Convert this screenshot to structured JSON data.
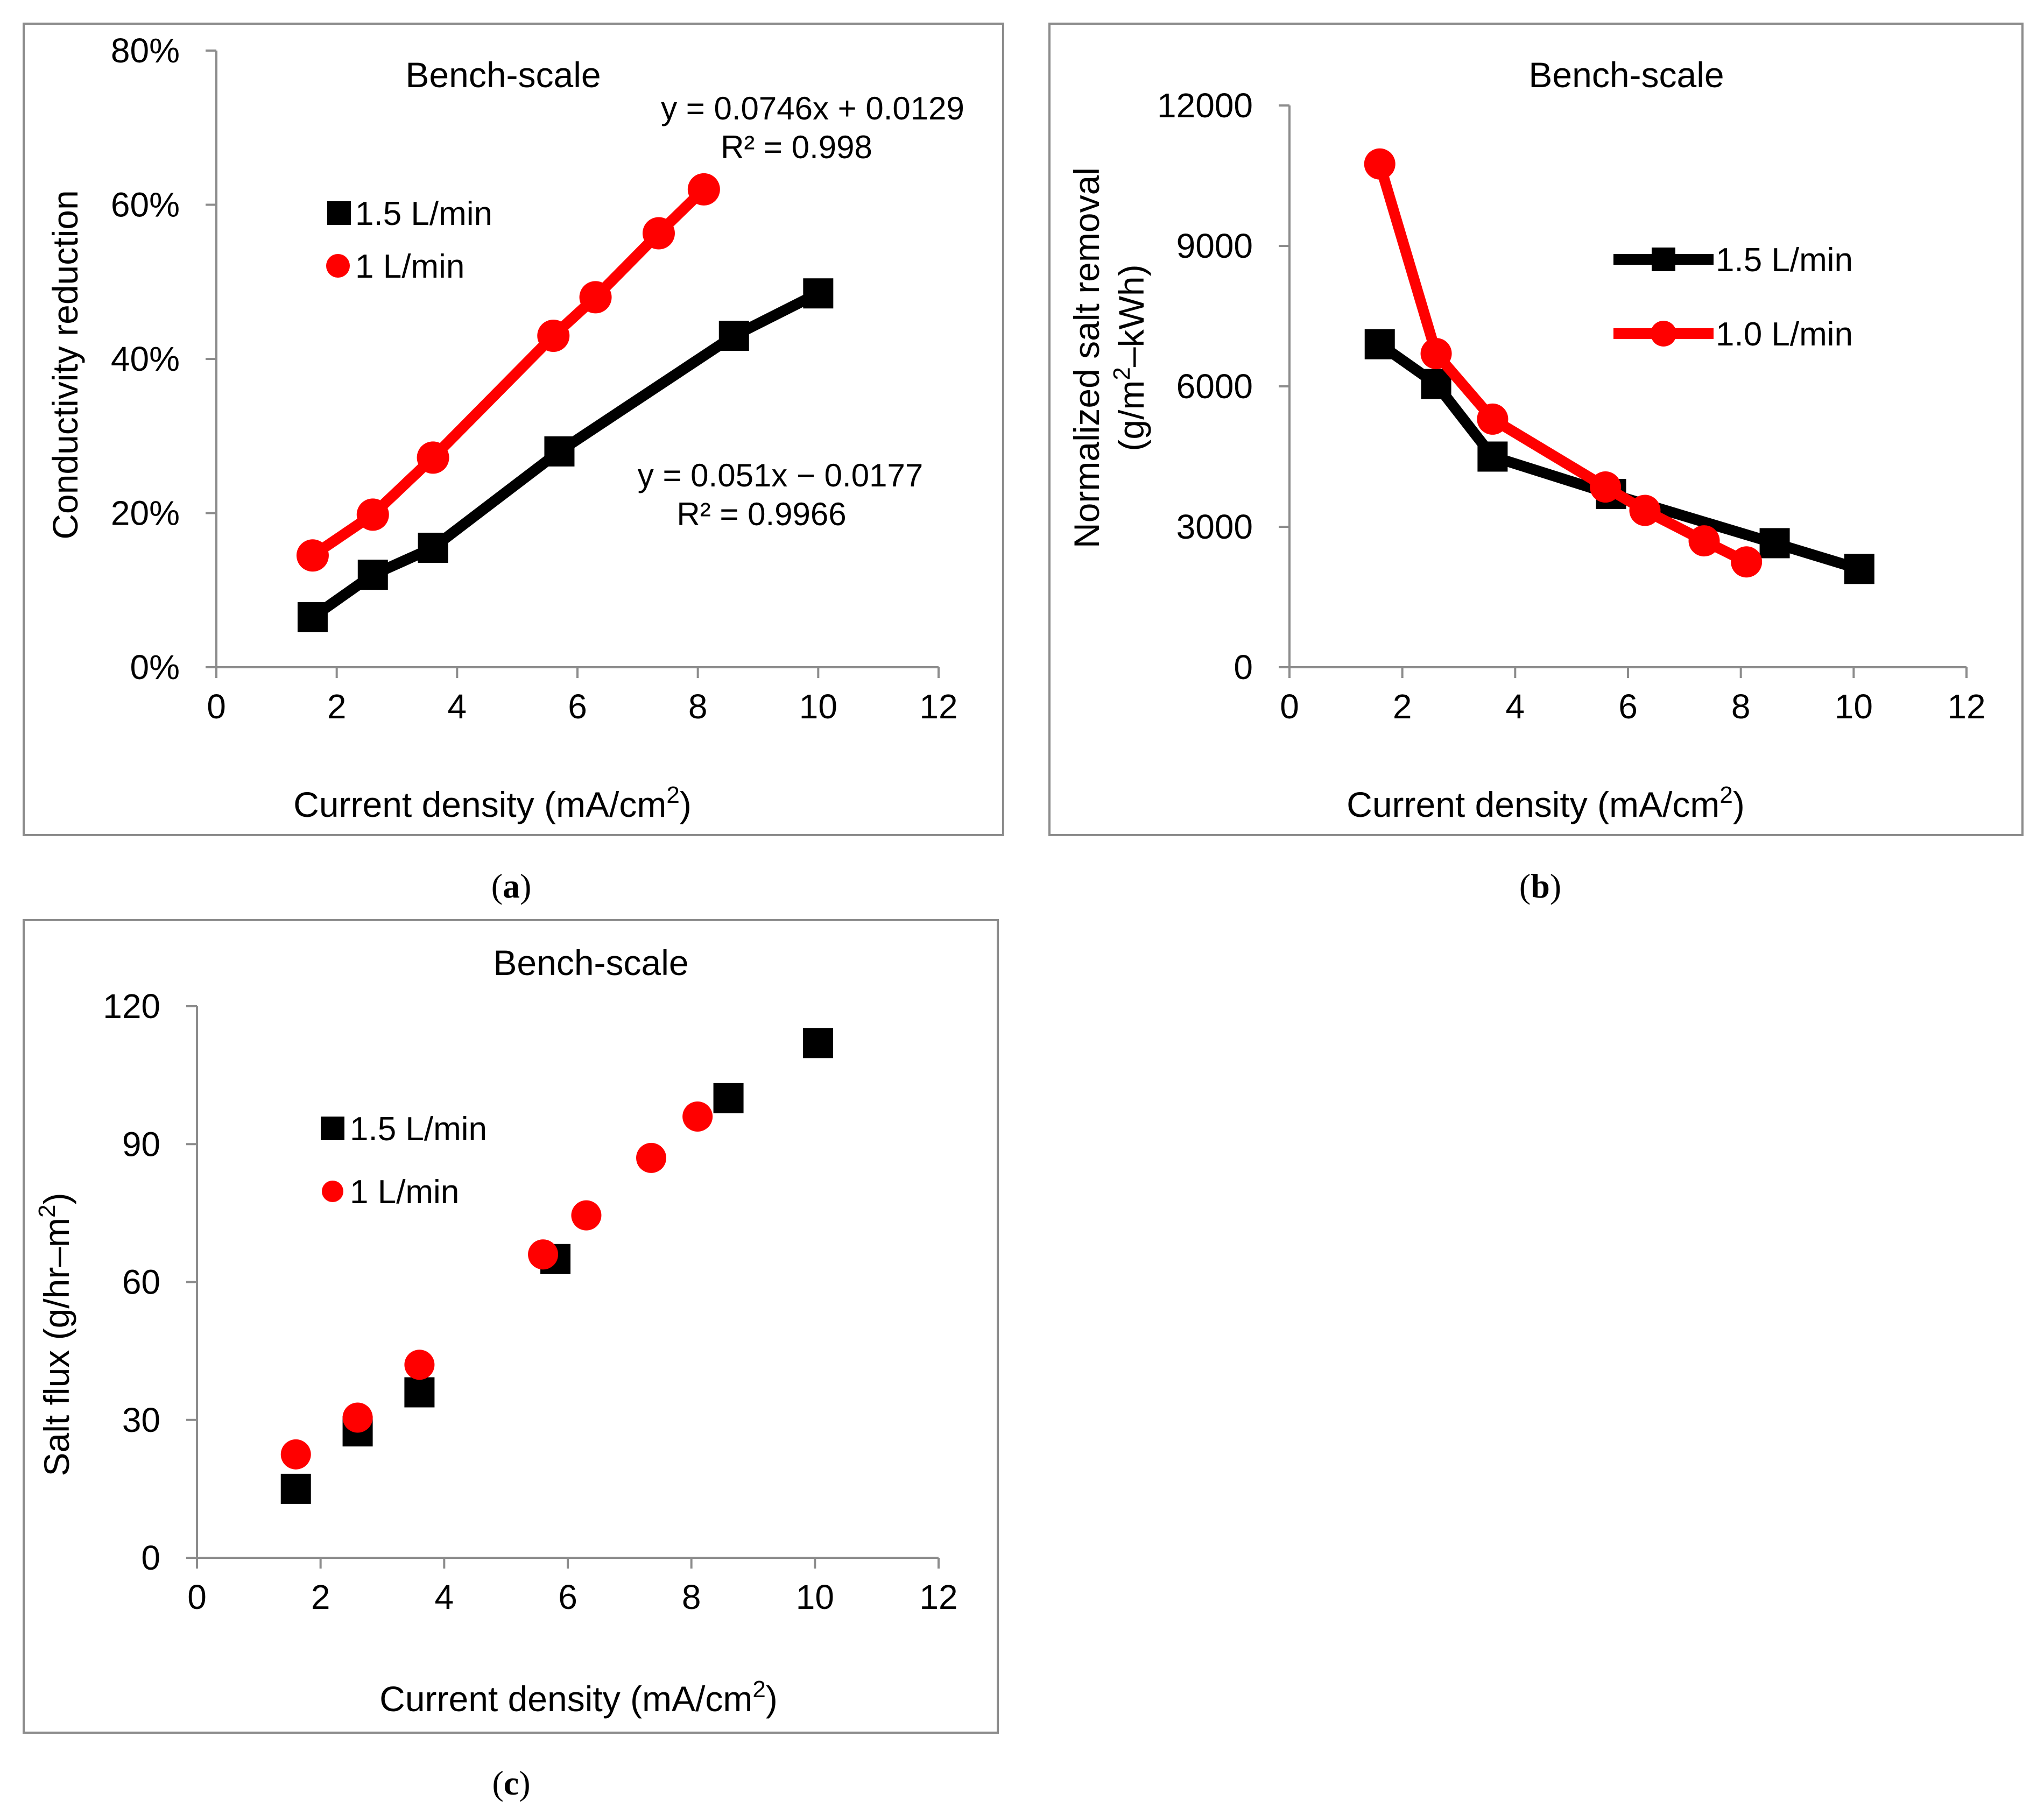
{
  "chart_data": [
    {
      "type": "line",
      "panel_label_pre": "(",
      "panel_label_letter": "a",
      "panel_label_post": ")",
      "title": "Bench-scale",
      "xlabel": "Current density (mA/cm",
      "xlabel_sup": "2",
      "xlabel_post": ")",
      "ylabel": "Conductivity reduction",
      "xlim": [
        0,
        12
      ],
      "ylim": [
        0,
        0.8
      ],
      "xticks": [
        0,
        2,
        4,
        6,
        8,
        10,
        12
      ],
      "yticks": [
        0,
        0.2,
        0.4,
        0.6,
        0.8
      ],
      "xtick_labels": [
        "0",
        "2",
        "4",
        "6",
        "8",
        "10",
        "12"
      ],
      "ytick_labels": [
        "0%",
        "20%",
        "40%",
        "60%",
        "80%"
      ],
      "legend": "upper-left",
      "series": [
        {
          "name": "1.5 L/min",
          "color": "#000000",
          "marker": "square",
          "x": [
            1.6,
            2.6,
            3.6,
            5.7,
            8.6,
            10.0
          ],
          "y": [
            0.065,
            0.12,
            0.155,
            0.28,
            0.43,
            0.485
          ]
        },
        {
          "name": "1 L/min",
          "color": "#ff0000",
          "marker": "circle",
          "x": [
            1.6,
            2.6,
            3.6,
            5.6,
            6.3,
            7.35,
            8.1
          ],
          "y": [
            0.145,
            0.198,
            0.272,
            0.43,
            0.48,
            0.563,
            0.62
          ]
        }
      ],
      "annotations": [
        {
          "eq": "y = 0.0746x + 0.0129",
          "r2": "R² = 0.998"
        },
        {
          "eq": "y = 0.051x − 0.0177",
          "r2": "R² = 0.9966"
        }
      ]
    },
    {
      "type": "line",
      "panel_label_pre": "(",
      "panel_label_letter": "b",
      "panel_label_post": ")",
      "title": "Bench-scale",
      "xlabel": "Current density (mA/cm",
      "xlabel_sup": "2",
      "xlabel_post": ")",
      "ylabel_line1": "Normalized salt removal",
      "ylabel_line2_pre": "(g/m",
      "ylabel_line2_sup": "2",
      "ylabel_line2_post": "–kWh)",
      "xlim": [
        0,
        12
      ],
      "ylim": [
        0,
        12000
      ],
      "xticks": [
        0,
        2,
        4,
        6,
        8,
        10,
        12
      ],
      "yticks": [
        0,
        3000,
        6000,
        9000,
        12000
      ],
      "xtick_labels": [
        "0",
        "2",
        "4",
        "6",
        "8",
        "10",
        "12"
      ],
      "ytick_labels": [
        "0",
        "3000",
        "6000",
        "9000",
        "12000"
      ],
      "legend": "upper-right",
      "series": [
        {
          "name": "1.5 L/min",
          "color": "#000000",
          "marker": "square",
          "x": [
            1.6,
            2.6,
            3.6,
            5.7,
            8.6,
            10.1
          ],
          "y": [
            6900,
            6050,
            4500,
            3700,
            2650,
            2100
          ]
        },
        {
          "name": "1.0 L/min",
          "color": "#ff0000",
          "marker": "circle",
          "x": [
            1.6,
            2.6,
            3.6,
            5.6,
            6.3,
            7.35,
            8.1
          ],
          "y": [
            10750,
            6700,
            5300,
            3850,
            3350,
            2700,
            2250
          ]
        }
      ]
    },
    {
      "type": "scatter",
      "panel_label_pre": "(",
      "panel_label_letter": "c",
      "panel_label_post": ")",
      "title": "Bench-scale",
      "xlabel": "Current density (mA/cm",
      "xlabel_sup": "2",
      "xlabel_post": ")",
      "ylabel_pre": "Salt flux (g/hr–m",
      "ylabel_sup": "2",
      "ylabel_post": ")",
      "xlim": [
        0,
        12
      ],
      "ylim": [
        0,
        120
      ],
      "xticks": [
        0,
        2,
        4,
        6,
        8,
        10,
        12
      ],
      "yticks": [
        0,
        30,
        60,
        90,
        120
      ],
      "xtick_labels": [
        "0",
        "2",
        "4",
        "6",
        "8",
        "10",
        "12"
      ],
      "ytick_labels": [
        "0",
        "30",
        "60",
        "90",
        "120"
      ],
      "legend": "upper-left",
      "series": [
        {
          "name": "1.5 L/min",
          "color": "#000000",
          "marker": "square",
          "x": [
            1.6,
            2.6,
            3.6,
            5.8,
            8.6,
            10.05
          ],
          "y": [
            15,
            27.5,
            36,
            65,
            100,
            112
          ]
        },
        {
          "name": "1 L/min",
          "color": "#ff0000",
          "marker": "circle",
          "x": [
            1.6,
            2.6,
            3.6,
            5.6,
            6.3,
            7.35,
            8.1
          ],
          "y": [
            22.5,
            30.5,
            42,
            66,
            74.5,
            87,
            96
          ]
        }
      ]
    }
  ]
}
